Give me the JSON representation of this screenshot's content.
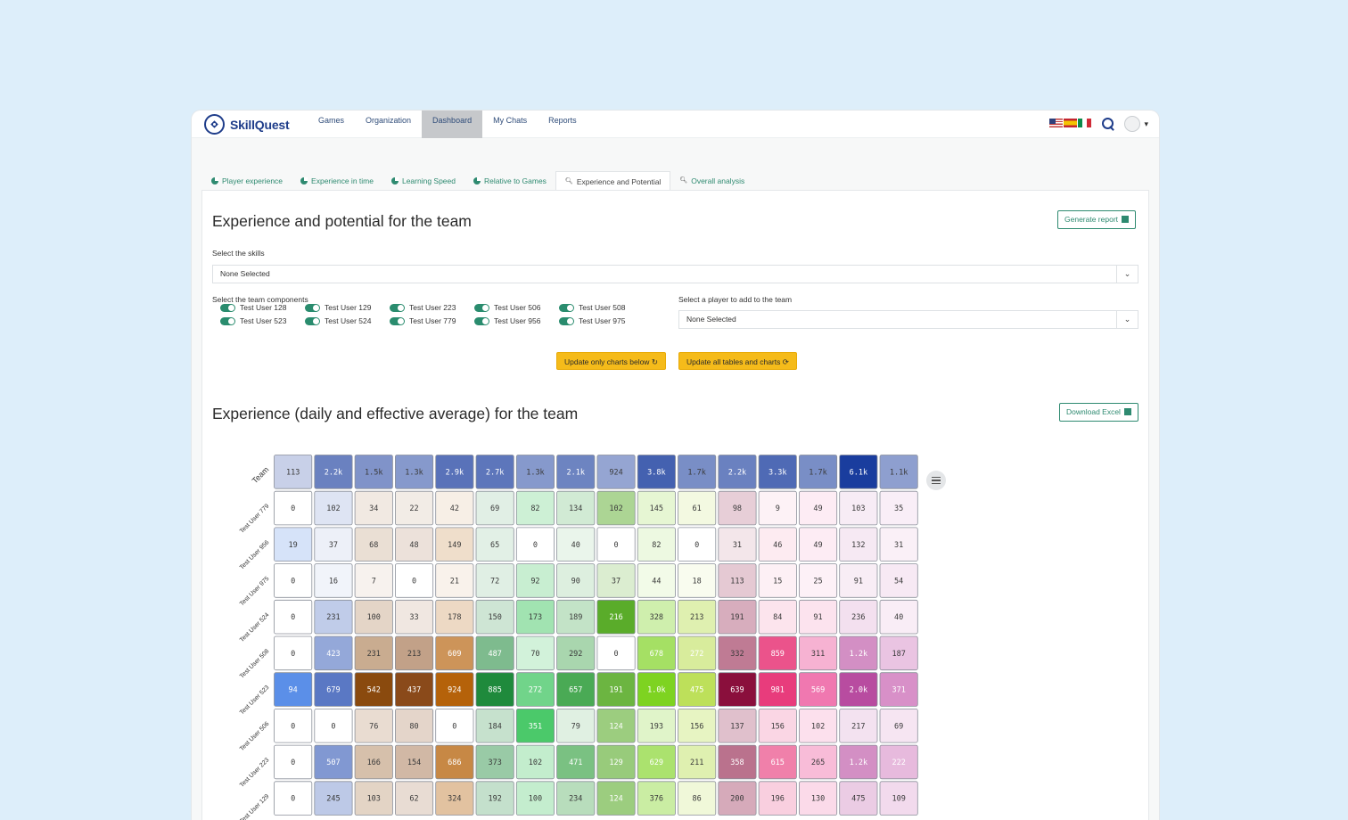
{
  "brand": {
    "name": "SkillQuest",
    "accent": "#1f3d8a",
    "green": "#2e8a70"
  },
  "nav": {
    "items": [
      "Games",
      "Organization",
      "Dashboard",
      "My Chats",
      "Reports"
    ],
    "active": "Dashboard"
  },
  "tabs": [
    {
      "label": "Player experience",
      "icon": "chart-pie-icon"
    },
    {
      "label": "Experience in time",
      "icon": "chart-pie-icon"
    },
    {
      "label": "Learning Speed",
      "icon": "chart-pie-icon"
    },
    {
      "label": "Relative to Games",
      "icon": "chart-pie-icon"
    },
    {
      "label": "Experience and Potential",
      "icon": "magnifier-icon",
      "active": true
    },
    {
      "label": "Overall analysis",
      "icon": "magnifier-icon"
    }
  ],
  "section1": {
    "title": "Experience and potential for the team",
    "generate_report": "Generate report",
    "skills_label": "Select the skills",
    "skills_value": "None Selected",
    "team_label": "Select the team components",
    "player_label": "Select a player to add to the team",
    "player_value": "None Selected",
    "team_members": [
      "Test User 128",
      "Test User 129",
      "Test User 223",
      "Test User 506",
      "Test User 508",
      "Test User 523",
      "Test User 524",
      "Test User 779",
      "Test User 956",
      "Test User 975"
    ],
    "update_charts": "Update only charts below",
    "update_all": "Update all tables and charts"
  },
  "section2": {
    "title": "Experience (daily and effective average) for the team",
    "download": "Download Excel"
  },
  "chart_data": {
    "type": "heatmap",
    "row_labels": [
      "Team",
      "Test User 779",
      "Test User 956",
      "Test User 975",
      "Test User 524",
      "Test User 508",
      "Test User 523",
      "Test User 506",
      "Test User 223",
      "Test User 129"
    ],
    "rows": [
      [
        "113",
        "2.2k",
        "1.5k",
        "1.3k",
        "2.9k",
        "2.7k",
        "1.3k",
        "2.1k",
        "924",
        "3.8k",
        "1.7k",
        "2.2k",
        "3.3k",
        "1.7k",
        "6.1k",
        "1.1k"
      ],
      [
        "0",
        "102",
        "34",
        "22",
        "42",
        "69",
        "82",
        "134",
        "102",
        "145",
        "61",
        "98",
        "9",
        "49",
        "103",
        "35"
      ],
      [
        "19",
        "37",
        "68",
        "48",
        "149",
        "65",
        "0",
        "40",
        "0",
        "82",
        "0",
        "31",
        "46",
        "49",
        "132",
        "31"
      ],
      [
        "0",
        "16",
        "7",
        "0",
        "21",
        "72",
        "92",
        "90",
        "37",
        "44",
        "18",
        "113",
        "15",
        "25",
        "91",
        "54"
      ],
      [
        "0",
        "231",
        "100",
        "33",
        "178",
        "150",
        "173",
        "189",
        "216",
        "328",
        "213",
        "191",
        "84",
        "91",
        "236",
        "40"
      ],
      [
        "0",
        "423",
        "231",
        "213",
        "609",
        "487",
        "70",
        "292",
        "0",
        "678",
        "272",
        "332",
        "859",
        "311",
        "1.2k",
        "187"
      ],
      [
        "94",
        "679",
        "542",
        "437",
        "924",
        "885",
        "272",
        "657",
        "191",
        "1.0k",
        "475",
        "639",
        "981",
        "569",
        "2.0k",
        "371"
      ],
      [
        "0",
        "0",
        "76",
        "80",
        "0",
        "184",
        "351",
        "79",
        "124",
        "193",
        "156",
        "137",
        "156",
        "102",
        "217",
        "69"
      ],
      [
        "0",
        "507",
        "166",
        "154",
        "686",
        "373",
        "102",
        "471",
        "129",
        "629",
        "211",
        "358",
        "615",
        "265",
        "1.2k",
        "222"
      ],
      [
        "0",
        "245",
        "103",
        "62",
        "324",
        "192",
        "100",
        "234",
        "124",
        "376",
        "86",
        "200",
        "196",
        "130",
        "475",
        "109"
      ]
    ],
    "column_palettes": [
      [
        "#ffffff",
        "#5b8fe8"
      ],
      [
        "#ffffff",
        "#5a78c4"
      ],
      [
        "#ffffff",
        "#8a4a0e"
      ],
      [
        "#ffffff",
        "#8a4a1a"
      ],
      [
        "#ffffff",
        "#b5620a"
      ],
      [
        "#ffffff",
        "#1f8a3c"
      ],
      [
        "#ffffff",
        "#4bc96a"
      ],
      [
        "#ffffff",
        "#4aaa55"
      ],
      [
        "#ffffff",
        "#5aac2a"
      ],
      [
        "#ffffff",
        "#7ed321"
      ],
      [
        "#ffffff",
        "#bde05a"
      ],
      [
        "#ffffff",
        "#8a0f3c"
      ],
      [
        "#ffffff",
        "#e83c7c"
      ],
      [
        "#ffffff",
        "#f078b0"
      ],
      [
        "#ffffff",
        "#b84ca0"
      ],
      [
        "#ffffff",
        "#d890c8"
      ]
    ],
    "team_palette": [
      "#ffffff",
      "#1a3d9e"
    ]
  }
}
